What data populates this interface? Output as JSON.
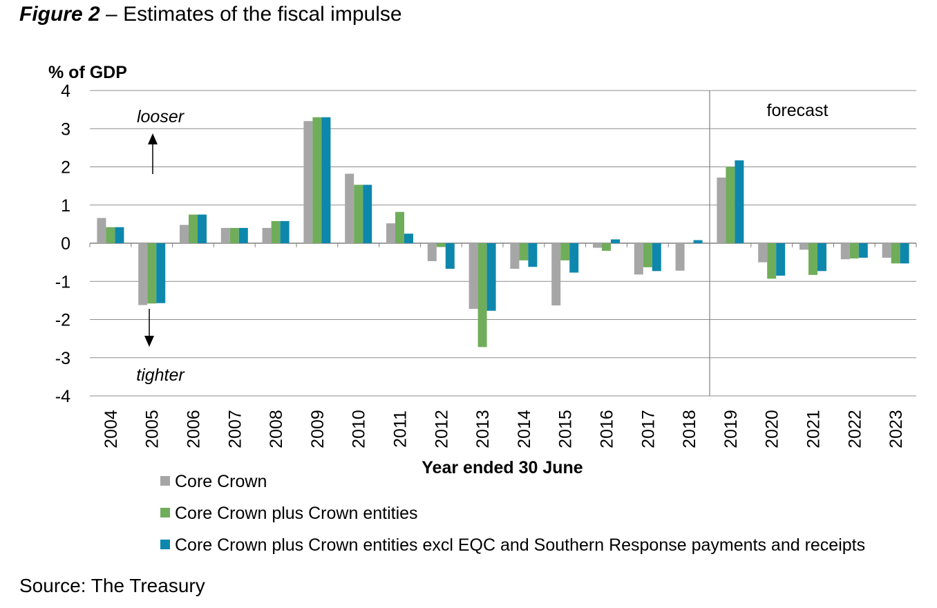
{
  "figure": {
    "label": "Figure 2",
    "dash": " – ",
    "title": "Estimates of the fiscal impulse"
  },
  "source": "Source: The Treasury",
  "colors": {
    "core_crown": "#a6a6a6",
    "core_crown_plus_entities": "#70ad5a",
    "excl_eqc": "#0e87ad",
    "gridline": "#8c8c8c",
    "axis": "#7f7f7f"
  },
  "chart_data": {
    "type": "bar",
    "title": "Estimates of the fiscal impulse",
    "ylabel": "% of GDP",
    "xlabel": "Year ended 30 June",
    "ylim": [
      -4,
      4
    ],
    "yticks": [
      -4,
      -3,
      -2,
      -1,
      0,
      1,
      2,
      3,
      4
    ],
    "grid": true,
    "legend_position": "bottom-left",
    "categories": [
      "2004",
      "2005",
      "2006",
      "2007",
      "2008",
      "2009",
      "2010",
      "2011",
      "2012",
      "2013",
      "2014",
      "2015",
      "2016",
      "2017",
      "2018",
      "2019",
      "2020",
      "2021",
      "2022",
      "2023"
    ],
    "series": [
      {
        "name": "Core Crown",
        "color": "#a6a6a6",
        "values": [
          0.66,
          -1.62,
          0.48,
          0.4,
          0.4,
          3.2,
          1.82,
          0.52,
          -0.47,
          -1.72,
          -0.67,
          -1.63,
          -0.12,
          -0.82,
          -0.72,
          1.72,
          -0.5,
          -0.17,
          -0.42,
          -0.38
        ]
      },
      {
        "name": "Core Crown plus Crown entities",
        "color": "#70ad5a",
        "values": [
          0.42,
          -1.58,
          0.75,
          0.4,
          0.58,
          3.3,
          1.53,
          0.82,
          -0.1,
          -2.72,
          -0.45,
          -0.45,
          -0.2,
          -0.63,
          0.0,
          2.0,
          -0.93,
          -0.83,
          -0.4,
          -0.53
        ]
      },
      {
        "name": "Core Crown plus Crown entities excl EQC and Southern Response payments and receipts",
        "color": "#0e87ad",
        "values": [
          0.42,
          -1.57,
          0.75,
          0.4,
          0.58,
          3.3,
          1.53,
          0.25,
          -0.67,
          -1.77,
          -0.62,
          -0.77,
          0.1,
          -0.73,
          0.08,
          2.17,
          -0.85,
          -0.73,
          -0.38,
          -0.53
        ]
      }
    ],
    "annotations": {
      "looser": "looser",
      "tighter": "tighter",
      "forecast": "forecast",
      "forecast_from": "2019"
    }
  }
}
